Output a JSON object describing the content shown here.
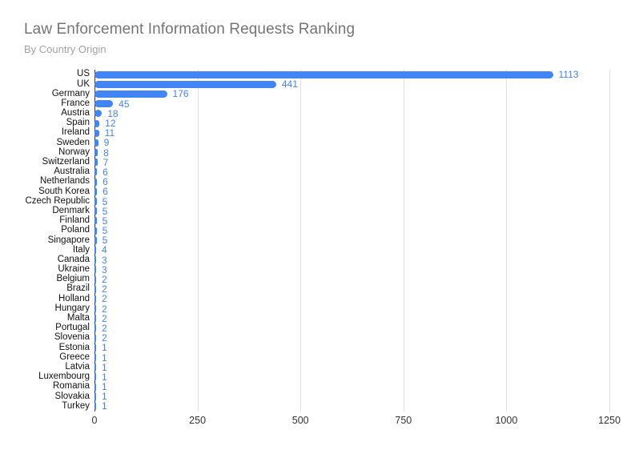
{
  "header": {
    "title": "Law Enforcement Information Requests Ranking",
    "subtitle": "By Country Origin"
  },
  "colors": {
    "bar": "#4285f4",
    "value_label": "#4285f4",
    "gridline": "#e0e0e0",
    "zero_axis": "#3c3c3c",
    "title_text": "#757575",
    "subtitle_text": "#a3a3a3"
  },
  "chart_data": {
    "type": "bar",
    "orientation": "horizontal",
    "title": "Law Enforcement Information Requests Ranking",
    "subtitle": "By Country Origin",
    "categories": [
      "US",
      "UK",
      "Germany",
      "France",
      "Austria",
      "Spain",
      "Ireland",
      "Sweden",
      "Norway",
      "Switzerland",
      "Australia",
      "Netherlands",
      "South Korea",
      "Czech Republic",
      "Denmark",
      "Finland",
      "Poland",
      "Singapore",
      "Italy",
      "Canada",
      "Ukraine",
      "Belgium",
      "Brazil",
      "Holland",
      "Hungary",
      "Malta",
      "Portugal",
      "Slovenia",
      "Estonia",
      "Greece",
      "Latvia",
      "Luxembourg",
      "Romania",
      "Slovakia",
      "Turkey"
    ],
    "values": [
      1113,
      441,
      176,
      45,
      18,
      12,
      11,
      9,
      8,
      7,
      6,
      6,
      6,
      5,
      5,
      5,
      5,
      5,
      4,
      3,
      3,
      2,
      2,
      2,
      2,
      2,
      2,
      2,
      1,
      1,
      1,
      1,
      1,
      1,
      1
    ],
    "xlabel": "",
    "ylabel": "",
    "xlim": [
      0,
      1250
    ],
    "x_ticks": [
      0,
      250,
      500,
      750,
      1000,
      1250
    ],
    "grid": true,
    "legend_position": "none",
    "value_labels": true
  }
}
